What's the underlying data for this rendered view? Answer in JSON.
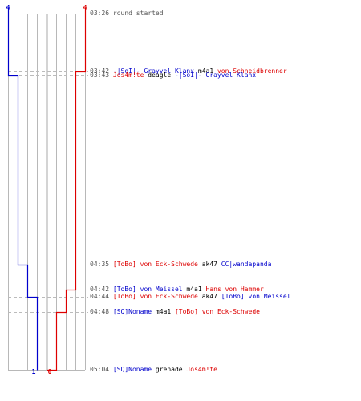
{
  "colors": {
    "blue": "#0000cc",
    "red": "#dd0000",
    "grid": "#b8b8b8",
    "center": "#555555",
    "dash": "#bbbbbb",
    "time": "#555555",
    "text": "#000000"
  },
  "chart_data": {
    "type": "line",
    "x_label": "",
    "y_label": "",
    "x_range": [
      0,
      4
    ],
    "blue_steps": [
      {
        "t": "03:26",
        "v": 4
      },
      {
        "t": "03:43",
        "v": 3
      },
      {
        "t": "04:35",
        "v": 2
      },
      {
        "t": "04:44",
        "v": 1
      },
      {
        "t": "05:04",
        "v": 1
      }
    ],
    "red_steps": [
      {
        "t": "03:26",
        "v": 4
      },
      {
        "t": "03:42",
        "v": 3
      },
      {
        "t": "04:42",
        "v": 2
      },
      {
        "t": "04:48",
        "v": 1
      },
      {
        "t": "05:04",
        "v": 0
      }
    ],
    "labels": {
      "blue_start": "4",
      "red_start": "4",
      "blue_end": "1",
      "red_end": "0"
    }
  },
  "events": [
    {
      "time": "03:26",
      "parts": [
        {
          "text": "round started",
          "c": "time"
        }
      ]
    },
    {
      "time": "03:42",
      "parts": [
        {
          "text": "-|SoI|- Grayvel Klanx",
          "c": "blue"
        },
        {
          "text": " m4a1 ",
          "c": "text"
        },
        {
          "text": "von Schneidbrenner",
          "c": "red"
        }
      ]
    },
    {
      "time": "03:43",
      "parts": [
        {
          "text": "Jos4m!te",
          "c": "red"
        },
        {
          "text": " deagle ",
          "c": "text"
        },
        {
          "text": "-|SoI|- Grayvel Klanx",
          "c": "blue"
        }
      ]
    },
    {
      "time": "04:35",
      "parts": [
        {
          "text": "[ToBo] von Eck-Schwede",
          "c": "red"
        },
        {
          "text": " ak47 ",
          "c": "text"
        },
        {
          "text": "CC|wandapanda",
          "c": "blue"
        }
      ]
    },
    {
      "time": "04:42",
      "parts": [
        {
          "text": "[ToBo] von Meissel",
          "c": "blue"
        },
        {
          "text": " m4a1 ",
          "c": "text"
        },
        {
          "text": "Hans von Hammer",
          "c": "red"
        }
      ]
    },
    {
      "time": "04:44",
      "parts": [
        {
          "text": "[ToBo] von Eck-Schwede",
          "c": "red"
        },
        {
          "text": " ak47 ",
          "c": "text"
        },
        {
          "text": "[ToBo] von Meissel",
          "c": "blue"
        }
      ]
    },
    {
      "time": "04:48",
      "parts": [
        {
          "text": "[SQ]Noname",
          "c": "blue"
        },
        {
          "text": " m4a1 ",
          "c": "text"
        },
        {
          "text": "[ToBo] von Eck-Schwede",
          "c": "red"
        }
      ]
    },
    {
      "time": "05:04",
      "parts": [
        {
          "text": "[SQ]Noname",
          "c": "blue"
        },
        {
          "text": " grenade ",
          "c": "text"
        },
        {
          "text": "Jos4m!te",
          "c": "red"
        }
      ]
    }
  ]
}
